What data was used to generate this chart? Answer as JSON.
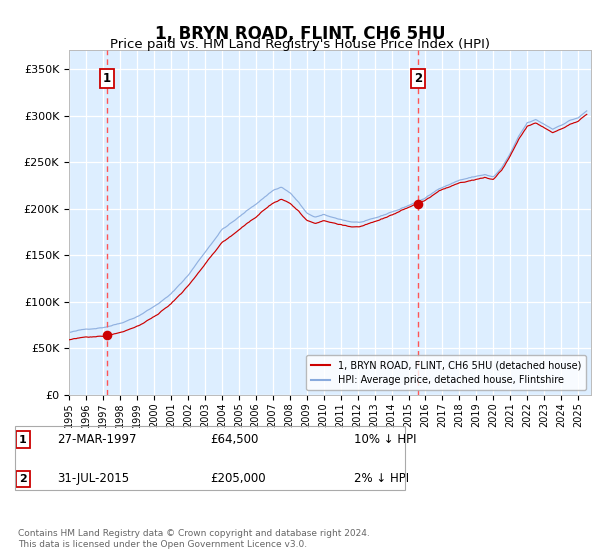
{
  "title": "1, BRYN ROAD, FLINT, CH6 5HU",
  "subtitle": "Price paid vs. HM Land Registry's House Price Index (HPI)",
  "title_fontsize": 12,
  "subtitle_fontsize": 9.5,
  "bg_color": "#ddeeff",
  "grid_color": "#ffffff",
  "red_line_color": "#cc0000",
  "blue_line_color": "#88aadd",
  "dashed_line_color": "#ff5555",
  "sale1_price": 64500,
  "sale1_year": 1997.23,
  "sale2_price": 205000,
  "sale2_year": 2015.58,
  "ylim": [
    0,
    370000
  ],
  "xlim_start": 1995.0,
  "xlim_end": 2025.75,
  "yticks": [
    0,
    50000,
    100000,
    150000,
    200000,
    250000,
    300000,
    350000
  ],
  "ytick_labels": [
    "£0",
    "£50K",
    "£100K",
    "£150K",
    "£200K",
    "£250K",
    "£300K",
    "£350K"
  ],
  "xticks": [
    1995,
    1996,
    1997,
    1998,
    1999,
    2000,
    2001,
    2002,
    2003,
    2004,
    2005,
    2006,
    2007,
    2008,
    2009,
    2010,
    2011,
    2012,
    2013,
    2014,
    2015,
    2016,
    2017,
    2018,
    2019,
    2020,
    2021,
    2022,
    2023,
    2024,
    2025
  ],
  "legend_label_red": "1, BRYN ROAD, FLINT, CH6 5HU (detached house)",
  "legend_label_blue": "HPI: Average price, detached house, Flintshire",
  "footnote": "Contains HM Land Registry data © Crown copyright and database right 2024.\nThis data is licensed under the Open Government Licence v3.0.",
  "sale1_label": "1",
  "sale2_label": "2",
  "sale1_date": "27-MAR-1997",
  "sale1_amount": "£64,500",
  "sale1_hpi": "10% ↓ HPI",
  "sale2_date": "31-JUL-2015",
  "sale2_amount": "£205,000",
  "sale2_hpi": "2% ↓ HPI"
}
